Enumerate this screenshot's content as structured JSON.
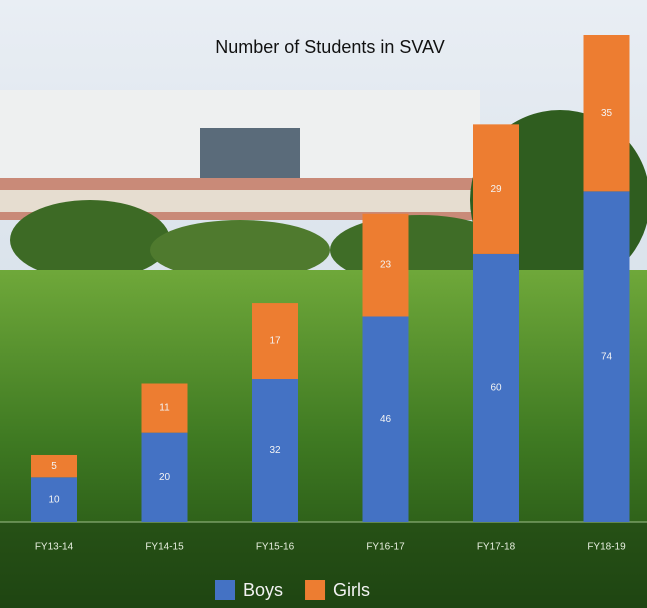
{
  "chart_data": {
    "type": "stacked_bar",
    "title": "Number of Students in SVAV",
    "categories": [
      "FY13-14",
      "FY14-15",
      "FY15-16",
      "FY16-17",
      "FY17-18",
      "FY18-19"
    ],
    "series": [
      {
        "name": "Boys",
        "color": "#4472c4",
        "values": [
          10,
          20,
          32,
          46,
          60,
          74
        ]
      },
      {
        "name": "Girls",
        "color": "#ed7d31",
        "values": [
          5,
          11,
          17,
          23,
          29,
          35
        ]
      }
    ]
  }
}
